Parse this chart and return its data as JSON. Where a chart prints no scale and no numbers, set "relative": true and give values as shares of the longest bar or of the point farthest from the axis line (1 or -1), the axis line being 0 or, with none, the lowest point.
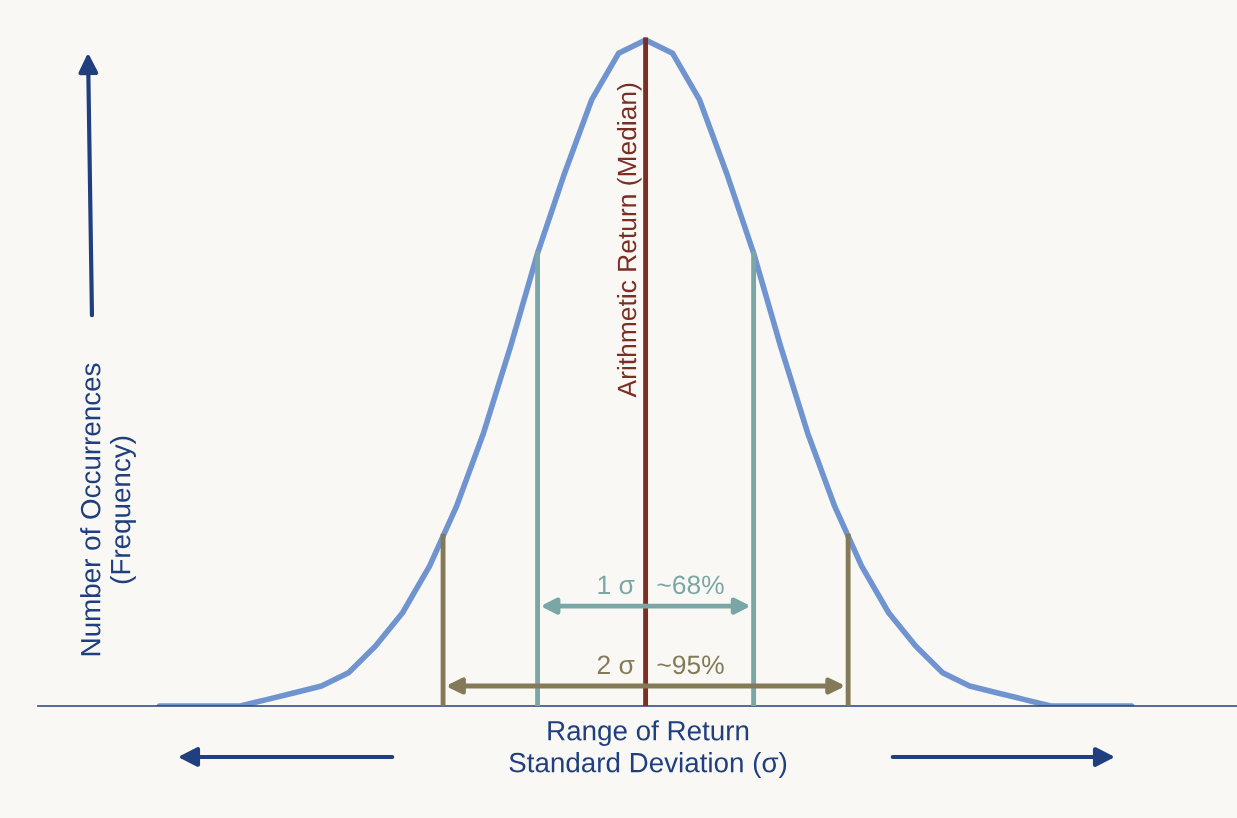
{
  "chart_data": {
    "type": "line",
    "relative": true,
    "categories": [
      null,
      null,
      null,
      null,
      null,
      null,
      null,
      null,
      null,
      null,
      null,
      null,
      null,
      null,
      null,
      null,
      null,
      null,
      null,
      null,
      null,
      null,
      null,
      null,
      null,
      null,
      null,
      null,
      null,
      null,
      null,
      null,
      null,
      null,
      null,
      null,
      null
    ],
    "series": [
      {
        "color": "#7094d0",
        "values": [
          0,
          0,
          0,
          0,
          0.01,
          0.02,
          0.03,
          0.05,
          0.09,
          0.14,
          0.21,
          0.3,
          0.41,
          0.54,
          0.68,
          0.8,
          0.91,
          0.98,
          1,
          0.98,
          0.91,
          0.8,
          0.68,
          0.54,
          0.41,
          0.3,
          0.21,
          0.14,
          0.09,
          0.05,
          0.03,
          0.02,
          0.01,
          0,
          0,
          0,
          0
        ]
      }
    ],
    "xlabel": "Range of Return\nStandard Deviation (σ)",
    "ylabel": "Number of Occurrences\n(Frequency)",
    "annotations": [
      "Arithmetic Return (Median)",
      "1 σ",
      "~68%",
      "2 σ",
      "~95%"
    ],
    "legend": false,
    "marker": "none",
    "line_style": "solid"
  }
}
